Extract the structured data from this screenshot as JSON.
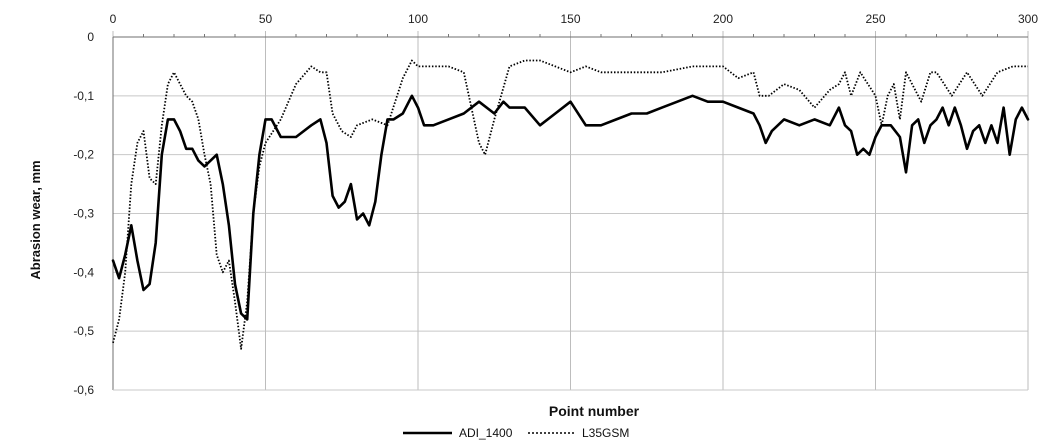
{
  "chart_data": {
    "type": "line",
    "title": "",
    "xlabel": "Point number",
    "ylabel": "Abrasion wear, mm",
    "xlim": [
      0,
      300
    ],
    "ylim": [
      -0.6,
      0
    ],
    "xticks": [
      "0",
      "50",
      "100",
      "150",
      "200",
      "250",
      "300"
    ],
    "yticks": [
      "0",
      "-0,1",
      "-0,2",
      "-0,3",
      "-0,4",
      "-0,5",
      "-0,6"
    ],
    "x_axis_position": "top",
    "grid": true,
    "legend_position": "bottom-center",
    "series": [
      {
        "name": "ADI_1400",
        "style": "solid",
        "color": "#000000",
        "x": [
          0,
          2,
          4,
          6,
          8,
          10,
          12,
          14,
          16,
          18,
          20,
          22,
          24,
          26,
          28,
          30,
          32,
          34,
          36,
          38,
          40,
          42,
          44,
          46,
          48,
          50,
          52,
          55,
          60,
          65,
          68,
          70,
          72,
          74,
          76,
          78,
          80,
          82,
          84,
          86,
          88,
          90,
          92,
          95,
          98,
          100,
          102,
          105,
          110,
          115,
          120,
          125,
          128,
          130,
          135,
          140,
          145,
          150,
          155,
          160,
          165,
          170,
          175,
          180,
          185,
          190,
          195,
          200,
          205,
          210,
          212,
          214,
          216,
          220,
          225,
          230,
          235,
          238,
          240,
          242,
          244,
          246,
          248,
          250,
          252,
          255,
          258,
          260,
          262,
          264,
          266,
          268,
          270,
          272,
          274,
          276,
          278,
          280,
          282,
          284,
          286,
          288,
          290,
          292,
          294,
          296,
          298,
          300
        ],
        "values": [
          -0.38,
          -0.41,
          -0.37,
          -0.32,
          -0.38,
          -0.43,
          -0.42,
          -0.35,
          -0.2,
          -0.14,
          -0.14,
          -0.16,
          -0.19,
          -0.19,
          -0.21,
          -0.22,
          -0.21,
          -0.2,
          -0.25,
          -0.32,
          -0.42,
          -0.47,
          -0.48,
          -0.3,
          -0.2,
          -0.14,
          -0.14,
          -0.17,
          -0.17,
          -0.15,
          -0.14,
          -0.18,
          -0.27,
          -0.29,
          -0.28,
          -0.25,
          -0.31,
          -0.3,
          -0.32,
          -0.28,
          -0.2,
          -0.14,
          -0.14,
          -0.13,
          -0.1,
          -0.12,
          -0.15,
          -0.15,
          -0.14,
          -0.13,
          -0.11,
          -0.13,
          -0.11,
          -0.12,
          -0.12,
          -0.15,
          -0.13,
          -0.11,
          -0.15,
          -0.15,
          -0.14,
          -0.13,
          -0.13,
          -0.12,
          -0.11,
          -0.1,
          -0.11,
          -0.11,
          -0.12,
          -0.13,
          -0.15,
          -0.18,
          -0.16,
          -0.14,
          -0.15,
          -0.14,
          -0.15,
          -0.12,
          -0.15,
          -0.16,
          -0.2,
          -0.19,
          -0.2,
          -0.17,
          -0.15,
          -0.15,
          -0.17,
          -0.23,
          -0.15,
          -0.14,
          -0.18,
          -0.15,
          -0.14,
          -0.12,
          -0.15,
          -0.12,
          -0.15,
          -0.19,
          -0.16,
          -0.15,
          -0.18,
          -0.15,
          -0.18,
          -0.12,
          -0.2,
          -0.14,
          -0.12,
          -0.14
        ]
      },
      {
        "name": "L35GSM",
        "style": "dotted",
        "color": "#000000",
        "x": [
          0,
          2,
          4,
          6,
          8,
          10,
          12,
          14,
          16,
          18,
          20,
          22,
          24,
          26,
          28,
          30,
          32,
          34,
          36,
          38,
          40,
          42,
          44,
          46,
          48,
          50,
          55,
          60,
          65,
          68,
          70,
          72,
          75,
          78,
          80,
          85,
          90,
          95,
          98,
          100,
          105,
          110,
          115,
          120,
          122,
          125,
          130,
          135,
          140,
          145,
          150,
          155,
          160,
          170,
          180,
          190,
          200,
          205,
          210,
          212,
          215,
          220,
          225,
          230,
          235,
          238,
          240,
          242,
          245,
          250,
          252,
          254,
          256,
          258,
          260,
          262,
          265,
          268,
          270,
          275,
          280,
          285,
          290,
          295,
          300
        ],
        "values": [
          -0.52,
          -0.48,
          -0.4,
          -0.25,
          -0.18,
          -0.16,
          -0.24,
          -0.25,
          -0.15,
          -0.08,
          -0.06,
          -0.08,
          -0.1,
          -0.11,
          -0.14,
          -0.2,
          -0.25,
          -0.37,
          -0.4,
          -0.38,
          -0.45,
          -0.53,
          -0.45,
          -0.3,
          -0.22,
          -0.18,
          -0.14,
          -0.08,
          -0.05,
          -0.06,
          -0.06,
          -0.13,
          -0.16,
          -0.17,
          -0.15,
          -0.14,
          -0.15,
          -0.07,
          -0.04,
          -0.05,
          -0.05,
          -0.05,
          -0.06,
          -0.18,
          -0.2,
          -0.14,
          -0.05,
          -0.04,
          -0.04,
          -0.05,
          -0.06,
          -0.05,
          -0.06,
          -0.06,
          -0.06,
          -0.05,
          -0.05,
          -0.07,
          -0.06,
          -0.1,
          -0.1,
          -0.08,
          -0.09,
          -0.12,
          -0.09,
          -0.08,
          -0.06,
          -0.1,
          -0.06,
          -0.1,
          -0.15,
          -0.1,
          -0.08,
          -0.14,
          -0.06,
          -0.08,
          -0.11,
          -0.06,
          -0.06,
          -0.1,
          -0.06,
          -0.1,
          -0.06,
          -0.05,
          -0.05
        ]
      }
    ]
  }
}
